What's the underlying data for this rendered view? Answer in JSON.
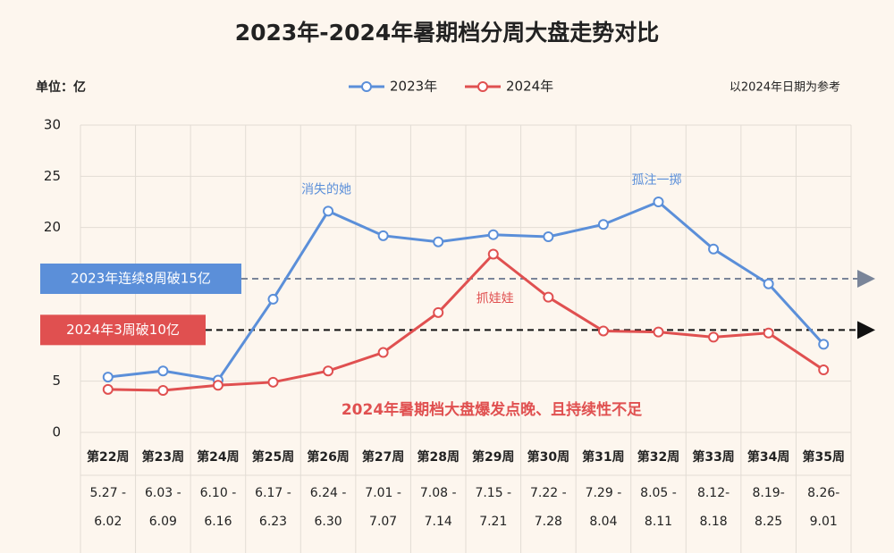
{
  "chart_data": {
    "type": "line",
    "title": "2023年-2024年暑期档分周大盘走势对比",
    "unit_label": "单位：亿",
    "note": "以2024年日期为参考",
    "categories": [
      "第22周",
      "第23周",
      "第24周",
      "第25周",
      "第26周",
      "第27周",
      "第28周",
      "第29周",
      "第30周",
      "第31周",
      "第32周",
      "第33周",
      "第34周",
      "第35周"
    ],
    "date_ranges": [
      [
        "5.27 -",
        "6.02"
      ],
      [
        "6.03 -",
        "6.09"
      ],
      [
        "6.10 -",
        "6.16"
      ],
      [
        "6.17 -",
        "6.23"
      ],
      [
        "6.24 -",
        "6.30"
      ],
      [
        "7.01 -",
        "7.07"
      ],
      [
        "7.08 -",
        "7.14"
      ],
      [
        "7.15 -",
        "7.21"
      ],
      [
        "7.22 -",
        "7.28"
      ],
      [
        "7.29 -",
        "8.04"
      ],
      [
        "8.05 -",
        "8.11"
      ],
      [
        "8.12-",
        "8.18"
      ],
      [
        "8.19-",
        "8.25"
      ],
      [
        "8.26-",
        "9.01"
      ]
    ],
    "series": [
      {
        "name": "2023年",
        "color": "#5b8fd9",
        "values": [
          5.4,
          6.0,
          5.1,
          13.0,
          21.6,
          19.2,
          18.6,
          19.3,
          19.1,
          20.3,
          22.5,
          17.9,
          14.5,
          8.6
        ]
      },
      {
        "name": "2024年",
        "color": "#e05050",
        "values": [
          4.2,
          4.1,
          4.6,
          4.9,
          6.0,
          7.8,
          11.7,
          17.4,
          13.2,
          9.9,
          9.8,
          9.3,
          9.7,
          6.1
        ]
      }
    ],
    "ylim": [
      0,
      30
    ],
    "yticks": [
      0,
      5,
      20,
      25,
      30
    ],
    "grid": true,
    "reference_lines": [
      {
        "value": 15,
        "label": "2023年连续8周破15亿",
        "color": "#5b8fd9",
        "line_color": "#7a8599"
      },
      {
        "value": 10,
        "label": "2024年3周破10亿",
        "color": "#e05050",
        "line_color": "#111111"
      }
    ],
    "point_annotations": [
      {
        "series": 0,
        "index": 4,
        "text": "消失的她"
      },
      {
        "series": 0,
        "index": 10,
        "text": "孤注一掷"
      },
      {
        "series": 1,
        "index": 7,
        "text": "抓娃娃"
      }
    ],
    "caption": "2024年暑期档大盘爆发点晚、且持续性不足"
  }
}
